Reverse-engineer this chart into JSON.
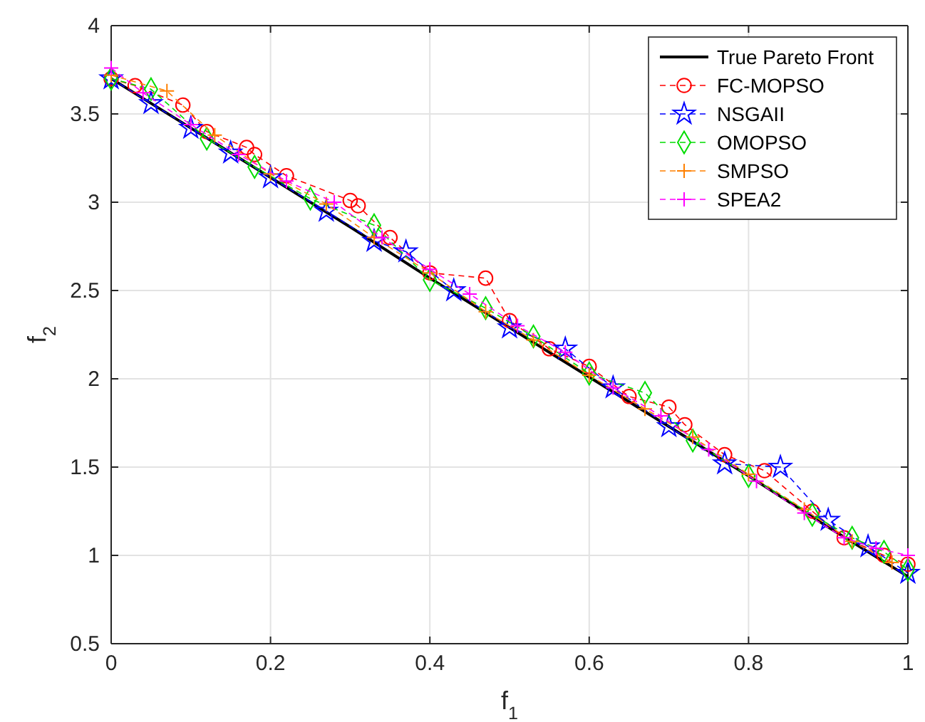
{
  "chart_data": {
    "type": "line",
    "xlabel": "f$_{1}$",
    "ylabel": "f$_{2}$",
    "xlim": [
      0,
      1
    ],
    "ylim": [
      0.5,
      4
    ],
    "xticks": [
      0,
      0.2,
      0.4,
      0.6,
      0.8,
      1
    ],
    "yticks": [
      0.5,
      1,
      1.5,
      2,
      2.5,
      3,
      3.5,
      4
    ],
    "grid": true,
    "legend": "top right",
    "series": [
      {
        "name": "True Pareto Front",
        "color": "#000000",
        "line_style": "solid",
        "marker": "none",
        "x": [
          0,
          0.1,
          0.2,
          0.3,
          0.4,
          0.5,
          0.6,
          0.7,
          0.8,
          0.9,
          1
        ],
        "values": [
          3.7,
          3.42,
          3.14,
          2.86,
          2.57,
          2.29,
          2.01,
          1.73,
          1.45,
          1.16,
          0.88
        ]
      },
      {
        "name": "FC-MOPSO",
        "color": "#ff0000",
        "line_style": "dashed",
        "marker": "circle",
        "x": [
          0,
          0.03,
          0.09,
          0.12,
          0.17,
          0.18,
          0.22,
          0.3,
          0.31,
          0.35,
          0.4,
          0.47,
          0.5,
          0.55,
          0.6,
          0.65,
          0.7,
          0.72,
          0.77,
          0.82,
          0.88,
          0.92,
          0.97,
          1
        ],
        "values": [
          3.7,
          3.66,
          3.55,
          3.4,
          3.31,
          3.27,
          3.15,
          3.01,
          2.98,
          2.8,
          2.6,
          2.57,
          2.33,
          2.17,
          2.07,
          1.9,
          1.84,
          1.74,
          1.57,
          1.48,
          1.25,
          1.1,
          1.0,
          0.95
        ]
      },
      {
        "name": "NSGAII",
        "color": "#0000ff",
        "line_style": "dashed",
        "marker": "star",
        "x": [
          0,
          0.05,
          0.1,
          0.15,
          0.2,
          0.27,
          0.33,
          0.37,
          0.43,
          0.5,
          0.57,
          0.63,
          0.7,
          0.77,
          0.84,
          0.9,
          0.95,
          1
        ],
        "values": [
          3.7,
          3.56,
          3.42,
          3.28,
          3.14,
          2.95,
          2.78,
          2.72,
          2.5,
          2.29,
          2.17,
          1.95,
          1.73,
          1.52,
          1.5,
          1.2,
          1.05,
          0.9
        ]
      },
      {
        "name": "OMOPSO",
        "color": "#00dd00",
        "line_style": "dashed",
        "marker": "diamond",
        "x": [
          0,
          0.05,
          0.12,
          0.18,
          0.25,
          0.33,
          0.4,
          0.47,
          0.53,
          0.6,
          0.67,
          0.73,
          0.8,
          0.88,
          0.93,
          0.97,
          1
        ],
        "values": [
          3.7,
          3.64,
          3.36,
          3.2,
          3.02,
          2.87,
          2.56,
          2.4,
          2.24,
          2.03,
          1.92,
          1.65,
          1.45,
          1.23,
          1.1,
          1.02,
          0.92
        ]
      },
      {
        "name": "SMPSO",
        "color": "#ff8000",
        "line_style": "dashed",
        "marker": "cross",
        "x": [
          0,
          0.07,
          0.13,
          0.2,
          0.27,
          0.33,
          0.4,
          0.47,
          0.53,
          0.6,
          0.67,
          0.73,
          0.8,
          0.87,
          0.93,
          0.98
        ],
        "values": [
          3.72,
          3.63,
          3.38,
          3.16,
          2.99,
          2.8,
          2.6,
          2.38,
          2.22,
          2.02,
          1.83,
          1.67,
          1.46,
          1.26,
          1.08,
          0.96
        ]
      },
      {
        "name": "SPEA2",
        "color": "#ff00ff",
        "line_style": "dashed",
        "marker": "cross",
        "x": [
          0,
          0.04,
          0.1,
          0.16,
          0.22,
          0.28,
          0.34,
          0.4,
          0.45,
          0.51,
          0.57,
          0.63,
          0.69,
          0.75,
          0.81,
          0.87,
          0.92,
          0.96,
          1
        ],
        "values": [
          3.76,
          3.62,
          3.44,
          3.27,
          3.12,
          3.0,
          2.8,
          2.62,
          2.48,
          2.3,
          2.15,
          1.95,
          1.79,
          1.6,
          1.42,
          1.24,
          1.1,
          1.04,
          1.0
        ]
      }
    ]
  }
}
